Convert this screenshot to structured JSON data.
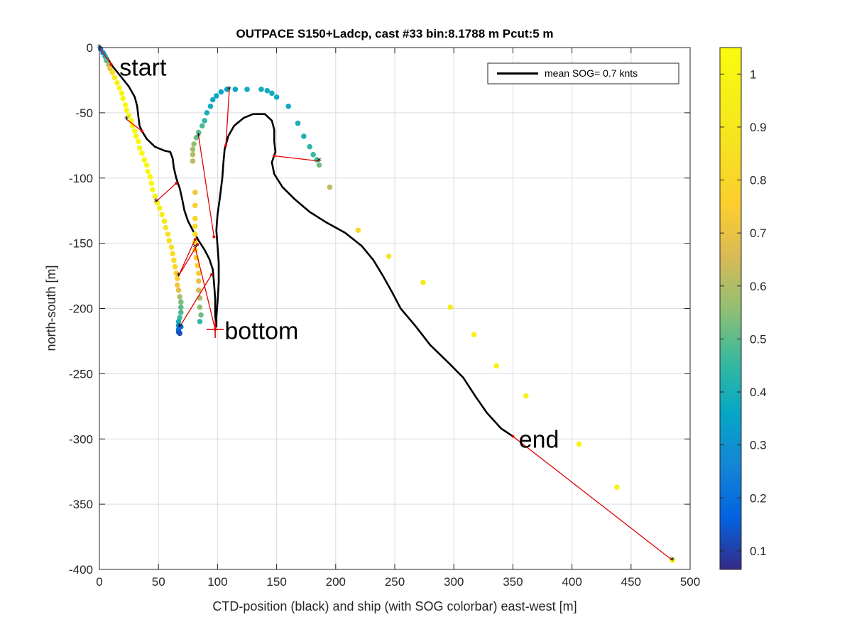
{
  "chart_data": {
    "type": "scatter",
    "title": "OUTPACE S150+Ladcp, cast #33 bin:8.1788 m  Pcut:5 m",
    "xlabel": "CTD-position (black) and ship (with SOG colorbar) east-west [m]",
    "ylabel": "north-south [m]",
    "xlim": [
      0,
      500
    ],
    "ylim": [
      -400,
      0
    ],
    "xticks": [
      "0",
      "50",
      "100",
      "150",
      "200",
      "250",
      "300",
      "350",
      "400",
      "450",
      "500"
    ],
    "yticks": [
      "0",
      "-50",
      "-100",
      "-150",
      "-200",
      "-250",
      "-300",
      "-350",
      "-400"
    ],
    "grid": true,
    "legend": {
      "placement": "top-right",
      "label": "mean SOG=  0.7 knts"
    },
    "colorbar": {
      "range": [
        0.065,
        1.05
      ],
      "ticks": [
        "0.1",
        "0.2",
        "0.3",
        "0.4",
        "0.5",
        "0.6",
        "0.7",
        "0.8",
        "0.9",
        "1"
      ],
      "colormap": "parula"
    },
    "annotations": [
      {
        "text": "start",
        "x": 17,
        "y": -15
      },
      {
        "text": "bottom",
        "x": 106,
        "y": -217
      },
      {
        "text": "end",
        "x": 355,
        "y": -300
      }
    ],
    "ctd_track": [
      [
        0,
        0
      ],
      [
        5,
        -5
      ],
      [
        10,
        -13
      ],
      [
        18,
        -22
      ],
      [
        25,
        -30
      ],
      [
        30,
        -38
      ],
      [
        32,
        -45
      ],
      [
        33,
        -53
      ],
      [
        34,
        -60
      ],
      [
        36,
        -64
      ],
      [
        40,
        -70
      ],
      [
        47,
        -76
      ],
      [
        55,
        -79
      ],
      [
        60,
        -80
      ],
      [
        62,
        -85
      ],
      [
        63,
        -92
      ],
      [
        65,
        -100
      ],
      [
        68,
        -108
      ],
      [
        70,
        -116
      ],
      [
        72,
        -125
      ],
      [
        75,
        -133
      ],
      [
        79,
        -140
      ],
      [
        84,
        -148
      ],
      [
        89,
        -155
      ],
      [
        93,
        -162
      ],
      [
        96,
        -170
      ],
      [
        97,
        -180
      ],
      [
        98,
        -193
      ],
      [
        98,
        -205
      ],
      [
        99,
        -214
      ],
      [
        99,
        -207
      ],
      [
        100,
        -195
      ],
      [
        101,
        -180
      ],
      [
        101,
        -165
      ],
      [
        100,
        -152
      ],
      [
        99,
        -140
      ],
      [
        100,
        -128
      ],
      [
        102,
        -115
      ],
      [
        104,
        -100
      ],
      [
        105,
        -88
      ],
      [
        106,
        -78
      ],
      [
        109,
        -68
      ],
      [
        114,
        -60
      ],
      [
        122,
        -54
      ],
      [
        130,
        -51
      ],
      [
        140,
        -51
      ],
      [
        146,
        -56
      ],
      [
        148,
        -63
      ],
      [
        148,
        -72
      ],
      [
        149,
        -80
      ],
      [
        146,
        -88
      ],
      [
        148,
        -97
      ],
      [
        155,
        -107
      ],
      [
        165,
        -116
      ],
      [
        178,
        -126
      ],
      [
        192,
        -134
      ],
      [
        208,
        -142
      ],
      [
        222,
        -152
      ],
      [
        232,
        -163
      ],
      [
        240,
        -175
      ],
      [
        248,
        -188
      ],
      [
        255,
        -200
      ],
      [
        268,
        -214
      ],
      [
        280,
        -228
      ],
      [
        296,
        -242
      ],
      [
        308,
        -253
      ],
      [
        318,
        -267
      ],
      [
        328,
        -280
      ],
      [
        340,
        -292
      ],
      [
        350,
        -298
      ]
    ],
    "ship_points": [
      [
        1,
        -1,
        0.22
      ],
      [
        3,
        -4,
        0.3
      ],
      [
        5,
        -7,
        0.4
      ],
      [
        6,
        -10,
        0.5
      ],
      [
        8,
        -13,
        0.6
      ],
      [
        9,
        -16,
        0.72
      ],
      [
        11,
        -19,
        0.85
      ],
      [
        13,
        -23,
        0.93
      ],
      [
        15,
        -27,
        0.97
      ],
      [
        17,
        -31,
        1.0
      ],
      [
        19,
        -35,
        1.0
      ],
      [
        20,
        -39,
        1.0
      ],
      [
        22,
        -44,
        1.0
      ],
      [
        23,
        -48,
        1.0
      ],
      [
        25,
        -52,
        1.01
      ],
      [
        27,
        -56,
        1.01
      ],
      [
        28,
        -60,
        1.01
      ],
      [
        30,
        -64,
        1.02
      ],
      [
        31,
        -68,
        1.02
      ],
      [
        33,
        -72,
        1.02
      ],
      [
        34,
        -77,
        1.02
      ],
      [
        36,
        -81,
        1.02
      ],
      [
        38,
        -86,
        1.02
      ],
      [
        40,
        -90,
        1.02
      ],
      [
        41,
        -95,
        1.02
      ],
      [
        43,
        -99,
        1.01
      ],
      [
        44,
        -104,
        1.01
      ],
      [
        45,
        -109,
        1.0
      ],
      [
        47,
        -114,
        0.99
      ],
      [
        49,
        -119,
        0.97
      ],
      [
        51,
        -123,
        0.95
      ],
      [
        53,
        -128,
        0.93
      ],
      [
        55,
        -133,
        0.9
      ],
      [
        56,
        -138,
        0.88
      ],
      [
        58,
        -143,
        0.87
      ],
      [
        59,
        -148,
        0.86
      ],
      [
        61,
        -153,
        0.85
      ],
      [
        62,
        -158,
        0.84
      ],
      [
        63,
        -163,
        0.82
      ],
      [
        64,
        -168,
        0.8
      ],
      [
        65,
        -173,
        0.78
      ],
      [
        66,
        -177,
        0.76
      ],
      [
        66,
        -182,
        0.72
      ],
      [
        67,
        -186,
        0.68
      ],
      [
        68,
        -191,
        0.6
      ],
      [
        69,
        -195,
        0.53
      ],
      [
        69,
        -199,
        0.5
      ],
      [
        69,
        -203,
        0.48
      ],
      [
        68,
        -207,
        0.47
      ],
      [
        67,
        -210,
        0.4
      ],
      [
        67,
        -213,
        0.3
      ],
      [
        67,
        -216,
        0.22
      ],
      [
        67,
        -218,
        0.15
      ],
      [
        68,
        -219,
        0.12
      ],
      [
        69,
        -214,
        0.2
      ],
      [
        81,
        -111,
        0.72
      ],
      [
        81,
        -121,
        0.75
      ],
      [
        81,
        -131,
        0.8
      ],
      [
        81,
        -137,
        0.82
      ],
      [
        81,
        -143,
        0.84
      ],
      [
        81,
        -149,
        0.84
      ],
      [
        81,
        -155,
        0.8
      ],
      [
        82,
        -161,
        0.78
      ],
      [
        83,
        -167,
        0.76
      ],
      [
        84,
        -173,
        0.74
      ],
      [
        84,
        -179,
        0.7
      ],
      [
        84,
        -186,
        0.65
      ],
      [
        85,
        -192,
        0.6
      ],
      [
        85,
        -199,
        0.55
      ],
      [
        86,
        -205,
        0.52
      ],
      [
        85,
        -210,
        0.45
      ],
      [
        79,
        -87,
        0.62
      ],
      [
        79,
        -82,
        0.6
      ],
      [
        79,
        -78,
        0.58
      ],
      [
        80,
        -74,
        0.56
      ],
      [
        82,
        -69,
        0.52
      ],
      [
        84,
        -65,
        0.5
      ],
      [
        87,
        -60,
        0.48
      ],
      [
        89,
        -56,
        0.45
      ],
      [
        91,
        -50,
        0.4
      ],
      [
        94,
        -45,
        0.38
      ],
      [
        96,
        -40,
        0.37
      ],
      [
        99,
        -37,
        0.36
      ],
      [
        103,
        -34,
        0.36
      ],
      [
        108,
        -32,
        0.36
      ],
      [
        115,
        -32,
        0.36
      ],
      [
        125,
        -32,
        0.38
      ],
      [
        137,
        -32,
        0.38
      ],
      [
        142,
        -33,
        0.38
      ],
      [
        146,
        -35,
        0.38
      ],
      [
        150,
        -38,
        0.38
      ],
      [
        160,
        -45,
        0.38
      ],
      [
        168,
        -58,
        0.4
      ],
      [
        173,
        -68,
        0.42
      ],
      [
        178,
        -76,
        0.44
      ],
      [
        181,
        -82,
        0.46
      ],
      [
        184,
        -86,
        0.48
      ],
      [
        186,
        -90,
        0.52
      ],
      [
        195,
        -107,
        0.62
      ],
      [
        219,
        -140,
        0.8
      ],
      [
        245,
        -160,
        0.88
      ],
      [
        274,
        -180,
        0.92
      ],
      [
        297,
        -199,
        0.94
      ],
      [
        317,
        -220,
        0.96
      ],
      [
        336,
        -244,
        0.96
      ],
      [
        361,
        -267,
        0.97
      ],
      [
        406,
        -304,
        0.98
      ],
      [
        438,
        -337,
        0.98
      ],
      [
        485,
        -393,
        1.0
      ]
    ],
    "markers": [
      [
        0,
        0
      ],
      [
        23,
        -55
      ],
      [
        48,
        -118
      ],
      [
        67,
        -175
      ],
      [
        68,
        -214
      ],
      [
        84,
        -68
      ],
      [
        110,
        -32
      ],
      [
        186,
        -87
      ],
      [
        81,
        -153
      ],
      [
        485,
        -393
      ]
    ],
    "connectors": [
      [
        [
          0,
          0
        ],
        [
          10,
          -13
        ]
      ],
      [
        [
          23,
          -55
        ],
        [
          36,
          -64
        ]
      ],
      [
        [
          48,
          -118
        ],
        [
          65,
          -104
        ]
      ],
      [
        [
          67,
          -175
        ],
        [
          81,
          -147
        ]
      ],
      [
        [
          67,
          -175
        ],
        [
          83,
          -151
        ]
      ],
      [
        [
          68,
          -214
        ],
        [
          95,
          -174
        ]
      ],
      [
        [
          81,
          -153
        ],
        [
          98,
          -216
        ]
      ],
      [
        [
          84,
          -68
        ],
        [
          97,
          -145
        ]
      ],
      [
        [
          110,
          -32
        ],
        [
          107,
          -75
        ]
      ],
      [
        [
          186,
          -87
        ],
        [
          148,
          -83
        ]
      ],
      [
        [
          485,
          -393
        ],
        [
          350,
          -298
        ]
      ]
    ],
    "bottom_cross": [
      98,
      -216
    ]
  }
}
